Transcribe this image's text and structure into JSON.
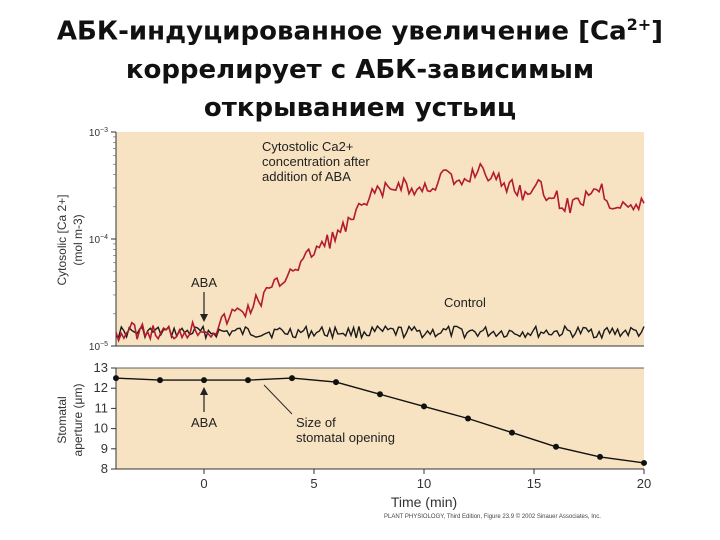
{
  "title": {
    "line1_pre": "АБК-индуцированное увеличение [Ca",
    "line1_sup": "2+",
    "line1_post": "]",
    "line2": "коррелирует с АБК-зависимым",
    "line3": "открыванием устьиц"
  },
  "credit": "PLANT PHYSIOLOGY, Third Edition, Figure 23.9  © 2002 Sinauer Associates, Inc.",
  "chart_data": [
    {
      "type": "line",
      "panel": "top",
      "ylabel_lines": [
        "Cytosolic [Ca 2+]",
        "(mol m-3)"
      ],
      "y_scale": "log",
      "y_ticks": [
        {
          "value": 0.001,
          "label": "10−3"
        },
        {
          "value": 0.0001,
          "label": "10−4"
        },
        {
          "value": 1e-05,
          "label": "10−5"
        }
      ],
      "ylim": [
        1e-05,
        0.001
      ],
      "xlim": [
        -4,
        20
      ],
      "background": "#f7e3c2",
      "series": [
        {
          "name": "Cytostolic Ca2+ concentration after addition of ABA",
          "label_lines": [
            "Cytostolic Ca2+",
            "concentration after",
            "addition of ABA"
          ],
          "color": "#b31a2e",
          "x": [
            -4,
            -3,
            -2,
            -1,
            0,
            0.5,
            1,
            1.5,
            2,
            2.5,
            3,
            3.5,
            4,
            4.5,
            5,
            5.5,
            6,
            6.5,
            7,
            7.5,
            8,
            8.5,
            9,
            9.5,
            10,
            10.5,
            11,
            11.5,
            12,
            12.5,
            13,
            13.5,
            14,
            14.5,
            15,
            15.5,
            16,
            16.5,
            17,
            17.5,
            18,
            18.5,
            19,
            19.5,
            20
          ],
          "y": [
            1.3e-05,
            1.4e-05,
            1.3e-05,
            1.4e-05,
            1.5e-05,
            1.4e-05,
            1.8e-05,
            2.1e-05,
            2.2e-05,
            2.7e-05,
            3.3e-05,
            4e-05,
            5.5e-05,
            6e-05,
            8e-05,
            9e-05,
            0.00011,
            0.00013,
            0.00018,
            0.00023,
            0.00029,
            0.00028,
            0.00035,
            0.00027,
            0.0003,
            0.00033,
            0.00042,
            0.0003,
            0.00037,
            0.00048,
            0.0004,
            0.00033,
            0.00032,
            0.00027,
            0.00033,
            0.00026,
            0.00025,
            0.0002,
            0.00022,
            0.00028,
            0.00031,
            0.00021,
            0.00023,
            0.00019,
            0.00021
          ]
        },
        {
          "name": "Control",
          "color": "#1a1a1a",
          "x": [
            -4,
            20
          ],
          "y": [
            1.35e-05,
            1.35e-05
          ]
        }
      ],
      "annotations": [
        {
          "text": "ABA",
          "x": 0
        }
      ]
    },
    {
      "type": "line",
      "panel": "bottom",
      "ylabel_lines": [
        "Stomatal",
        "aperture (μm)"
      ],
      "y_ticks": [
        8,
        9,
        10,
        11,
        12,
        13
      ],
      "ylim": [
        8,
        13
      ],
      "x_ticks": [
        0,
        5,
        10,
        15,
        20
      ],
      "xlim": [
        -4,
        20
      ],
      "xlabel": "Time (min)",
      "background": "#f7e3c2",
      "series": [
        {
          "name": "Size of stomatal opening",
          "label_lines": [
            "Size of",
            "stomatal opening"
          ],
          "color": "#111111",
          "x": [
            -4,
            -2,
            0,
            2,
            4,
            6,
            8,
            10,
            12,
            14,
            16,
            18,
            20
          ],
          "y": [
            12.5,
            12.4,
            12.4,
            12.4,
            12.5,
            12.3,
            11.7,
            11.1,
            10.5,
            9.8,
            9.1,
            8.6,
            8.3
          ]
        }
      ],
      "annotations": [
        {
          "text": "ABA",
          "x": 0
        }
      ]
    }
  ]
}
